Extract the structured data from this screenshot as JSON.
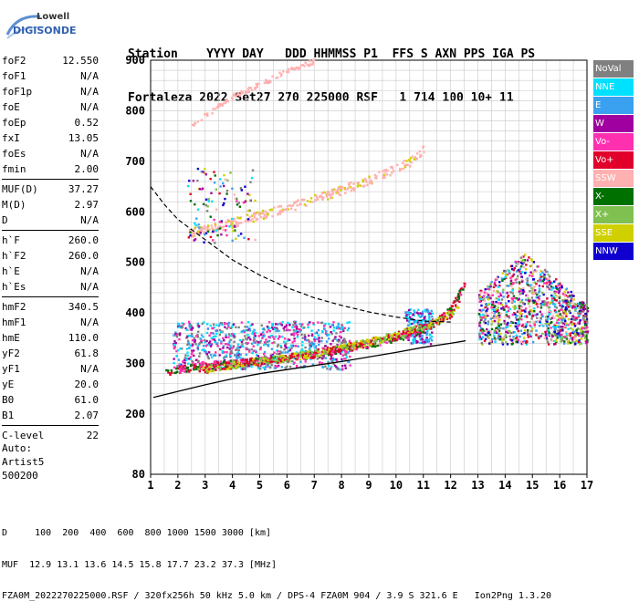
{
  "logo": {
    "line1": "Lowell",
    "line2": "DIGISONDE"
  },
  "header": {
    "line1": "Station    YYYY DAY   DDD HHMMSS P1  FFS S AXN PPS IGA PS",
    "line2": "Fortaleza 2022 Set27 270 225000 RSF   1 714 100 10+ 11"
  },
  "params": [
    [
      {
        "label": "foF2",
        "value": "12.550"
      },
      {
        "label": "foF1",
        "value": "N/A"
      },
      {
        "label": "foF1p",
        "value": "N/A"
      },
      {
        "label": "foE",
        "value": "N/A"
      },
      {
        "label": "foEp",
        "value": "0.52"
      },
      {
        "label": "fxI",
        "value": "13.05"
      },
      {
        "label": "foEs",
        "value": "N/A"
      },
      {
        "label": "fmin",
        "value": "2.00"
      }
    ],
    [
      {
        "label": "MUF(D)",
        "value": "37.27"
      },
      {
        "label": "M(D)",
        "value": "2.97"
      },
      {
        "label": "D",
        "value": "N/A"
      }
    ],
    [
      {
        "label": "h`F",
        "value": "260.0"
      },
      {
        "label": "h`F2",
        "value": "260.0"
      },
      {
        "label": "h`E",
        "value": "N/A"
      },
      {
        "label": "h`Es",
        "value": "N/A"
      }
    ],
    [
      {
        "label": "hmF2",
        "value": "340.5"
      },
      {
        "label": "hmF1",
        "value": "N/A"
      },
      {
        "label": "hmE",
        "value": "110.0"
      },
      {
        "label": "yF2",
        "value": "61.8"
      },
      {
        "label": "yF1",
        "value": "N/A"
      },
      {
        "label": "yE",
        "value": "20.0"
      },
      {
        "label": "B0",
        "value": "61.0"
      },
      {
        "label": "B1",
        "value": "2.07"
      }
    ],
    [
      {
        "label": "C-level",
        "value": "22"
      }
    ]
  ],
  "auto": {
    "line1": "Auto:",
    "line2": "Artist5",
    "line3": "500200"
  },
  "legend": [
    {
      "label": "NoVal",
      "color": "#808080"
    },
    {
      "label": "NNE",
      "color": "#00e0ff"
    },
    {
      "label": "E",
      "color": "#3aa0f0"
    },
    {
      "label": "W",
      "color": "#a000a0"
    },
    {
      "label": "Vo-",
      "color": "#ff30b0"
    },
    {
      "label": "Vo+",
      "color": "#e0002a"
    },
    {
      "label": "SSW",
      "color": "#ffb0b0"
    },
    {
      "label": "X-",
      "color": "#007000"
    },
    {
      "label": "X+",
      "color": "#80c050"
    },
    {
      "label": "SSE",
      "color": "#d0d000"
    },
    {
      "label": "NNW",
      "color": "#1000d0"
    }
  ],
  "bottom": {
    "line1": "D     100  200  400  600  800 1000 1500 3000 [km]",
    "line2": "MUF  12.9 13.1 13.6 14.5 15.8 17.7 23.2 37.3 [MHz]",
    "line3": "FZA0M_2022270225000.RSF / 320fx256h 50 kHz 5.0 km / DPS-4 FZA0M 904 / 3.9 S 321.6 E   Ion2Png 1.3.20"
  },
  "chart_data": {
    "type": "scatter",
    "x_ticks": [
      "1",
      "2",
      "3",
      "4",
      "5",
      "6",
      "7",
      "8",
      "9",
      "10",
      "11",
      "12",
      "13",
      "14",
      "15",
      "16",
      "17"
    ],
    "y_ticks": [
      "80",
      "200",
      "300",
      "400",
      "500",
      "600",
      "700",
      "800",
      "900"
    ],
    "xlim": [
      1,
      17
    ],
    "ylim": [
      80,
      900
    ],
    "grid": true,
    "legend_placement": "right",
    "trace_f2_o": [
      [
        1.5,
        285
      ],
      [
        2,
        290
      ],
      [
        3,
        297
      ],
      [
        4,
        302
      ],
      [
        5,
        307
      ],
      [
        6,
        313
      ],
      [
        7,
        320
      ],
      [
        8,
        330
      ],
      [
        9,
        340
      ],
      [
        10,
        352
      ],
      [
        11,
        370
      ],
      [
        11.5,
        385
      ],
      [
        12,
        410
      ],
      [
        12.5,
        460
      ]
    ],
    "trace_f2_x": [
      [
        2.7,
        288
      ],
      [
        4,
        300
      ],
      [
        5,
        306
      ],
      [
        6,
        313
      ],
      [
        7,
        322
      ],
      [
        8,
        333
      ],
      [
        9,
        345
      ],
      [
        10,
        358
      ],
      [
        11,
        375
      ],
      [
        12,
        400
      ],
      [
        12.3,
        420
      ]
    ],
    "trace_multihop": [
      [
        2.4,
        560
      ],
      [
        4,
        580
      ],
      [
        6,
        610
      ],
      [
        8,
        645
      ],
      [
        9,
        665
      ],
      [
        10.5,
        700
      ],
      [
        11,
        725
      ]
    ],
    "trace_third": [
      [
        2.5,
        775
      ],
      [
        4,
        830
      ],
      [
        6,
        880
      ],
      [
        7,
        900
      ]
    ],
    "profile_solid": [
      [
        1.1,
        233
      ],
      [
        2,
        245
      ],
      [
        3,
        258
      ],
      [
        4,
        270
      ],
      [
        5,
        280
      ],
      [
        6,
        288
      ],
      [
        7,
        296
      ],
      [
        8,
        304
      ],
      [
        9,
        313
      ],
      [
        10,
        322
      ],
      [
        11,
        332
      ],
      [
        12,
        340
      ],
      [
        12.55,
        345
      ]
    ],
    "profile_dashed": [
      [
        1,
        650
      ],
      [
        1.5,
        615
      ],
      [
        2,
        585
      ],
      [
        3,
        545
      ],
      [
        4,
        505
      ],
      [
        5,
        475
      ],
      [
        6,
        450
      ],
      [
        7,
        430
      ],
      [
        8,
        415
      ],
      [
        9,
        402
      ],
      [
        10,
        392
      ],
      [
        11,
        384
      ],
      [
        12,
        382
      ]
    ],
    "spread_region": [
      {
        "x": [
          13,
          17
        ],
        "y": [
          340,
          520
        ]
      }
    ]
  }
}
